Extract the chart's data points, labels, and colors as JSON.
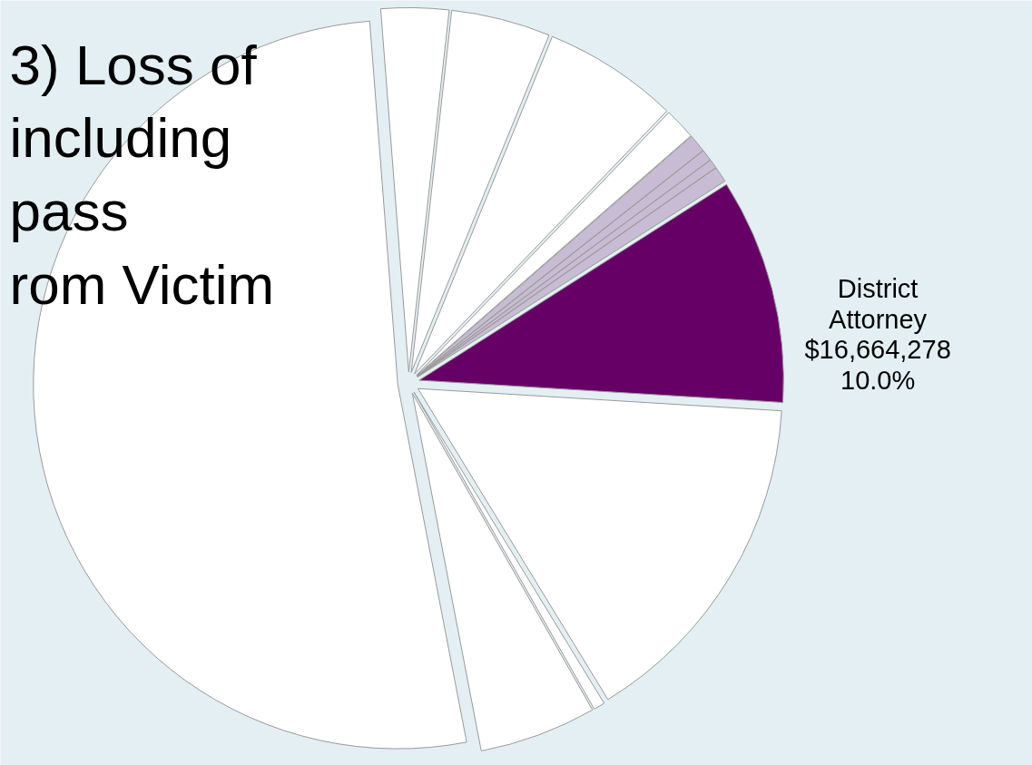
{
  "chart_data": {
    "type": "pie",
    "categories": [
      "District Attorney",
      null,
      null,
      null,
      null,
      null,
      null,
      null,
      null,
      null,
      null,
      null,
      null
    ],
    "values": [
      10.0,
      0.7,
      0.4,
      0.5,
      0.8,
      1.4,
      6.0,
      4.4,
      3.0,
      51.8,
      5.2,
      0.5,
      15.3
    ],
    "colors": [
      "#660066",
      "#c8bcd4",
      "#c8bcd4",
      "#c8bcd4",
      "#c8bcd4",
      "#ffffff",
      "#ffffff",
      "#ffffff",
      "#ffffff",
      "#ffffff",
      "#ffffff",
      "#ffffff",
      "#ffffff"
    ],
    "value_labels": [
      "$16,664,278\n10.0%",
      null,
      null,
      null,
      null,
      null,
      null,
      null,
      null,
      null,
      null,
      null,
      null
    ],
    "annotations": [
      "3) Loss of\nincluding\npass\nrom Victim"
    ]
  }
}
